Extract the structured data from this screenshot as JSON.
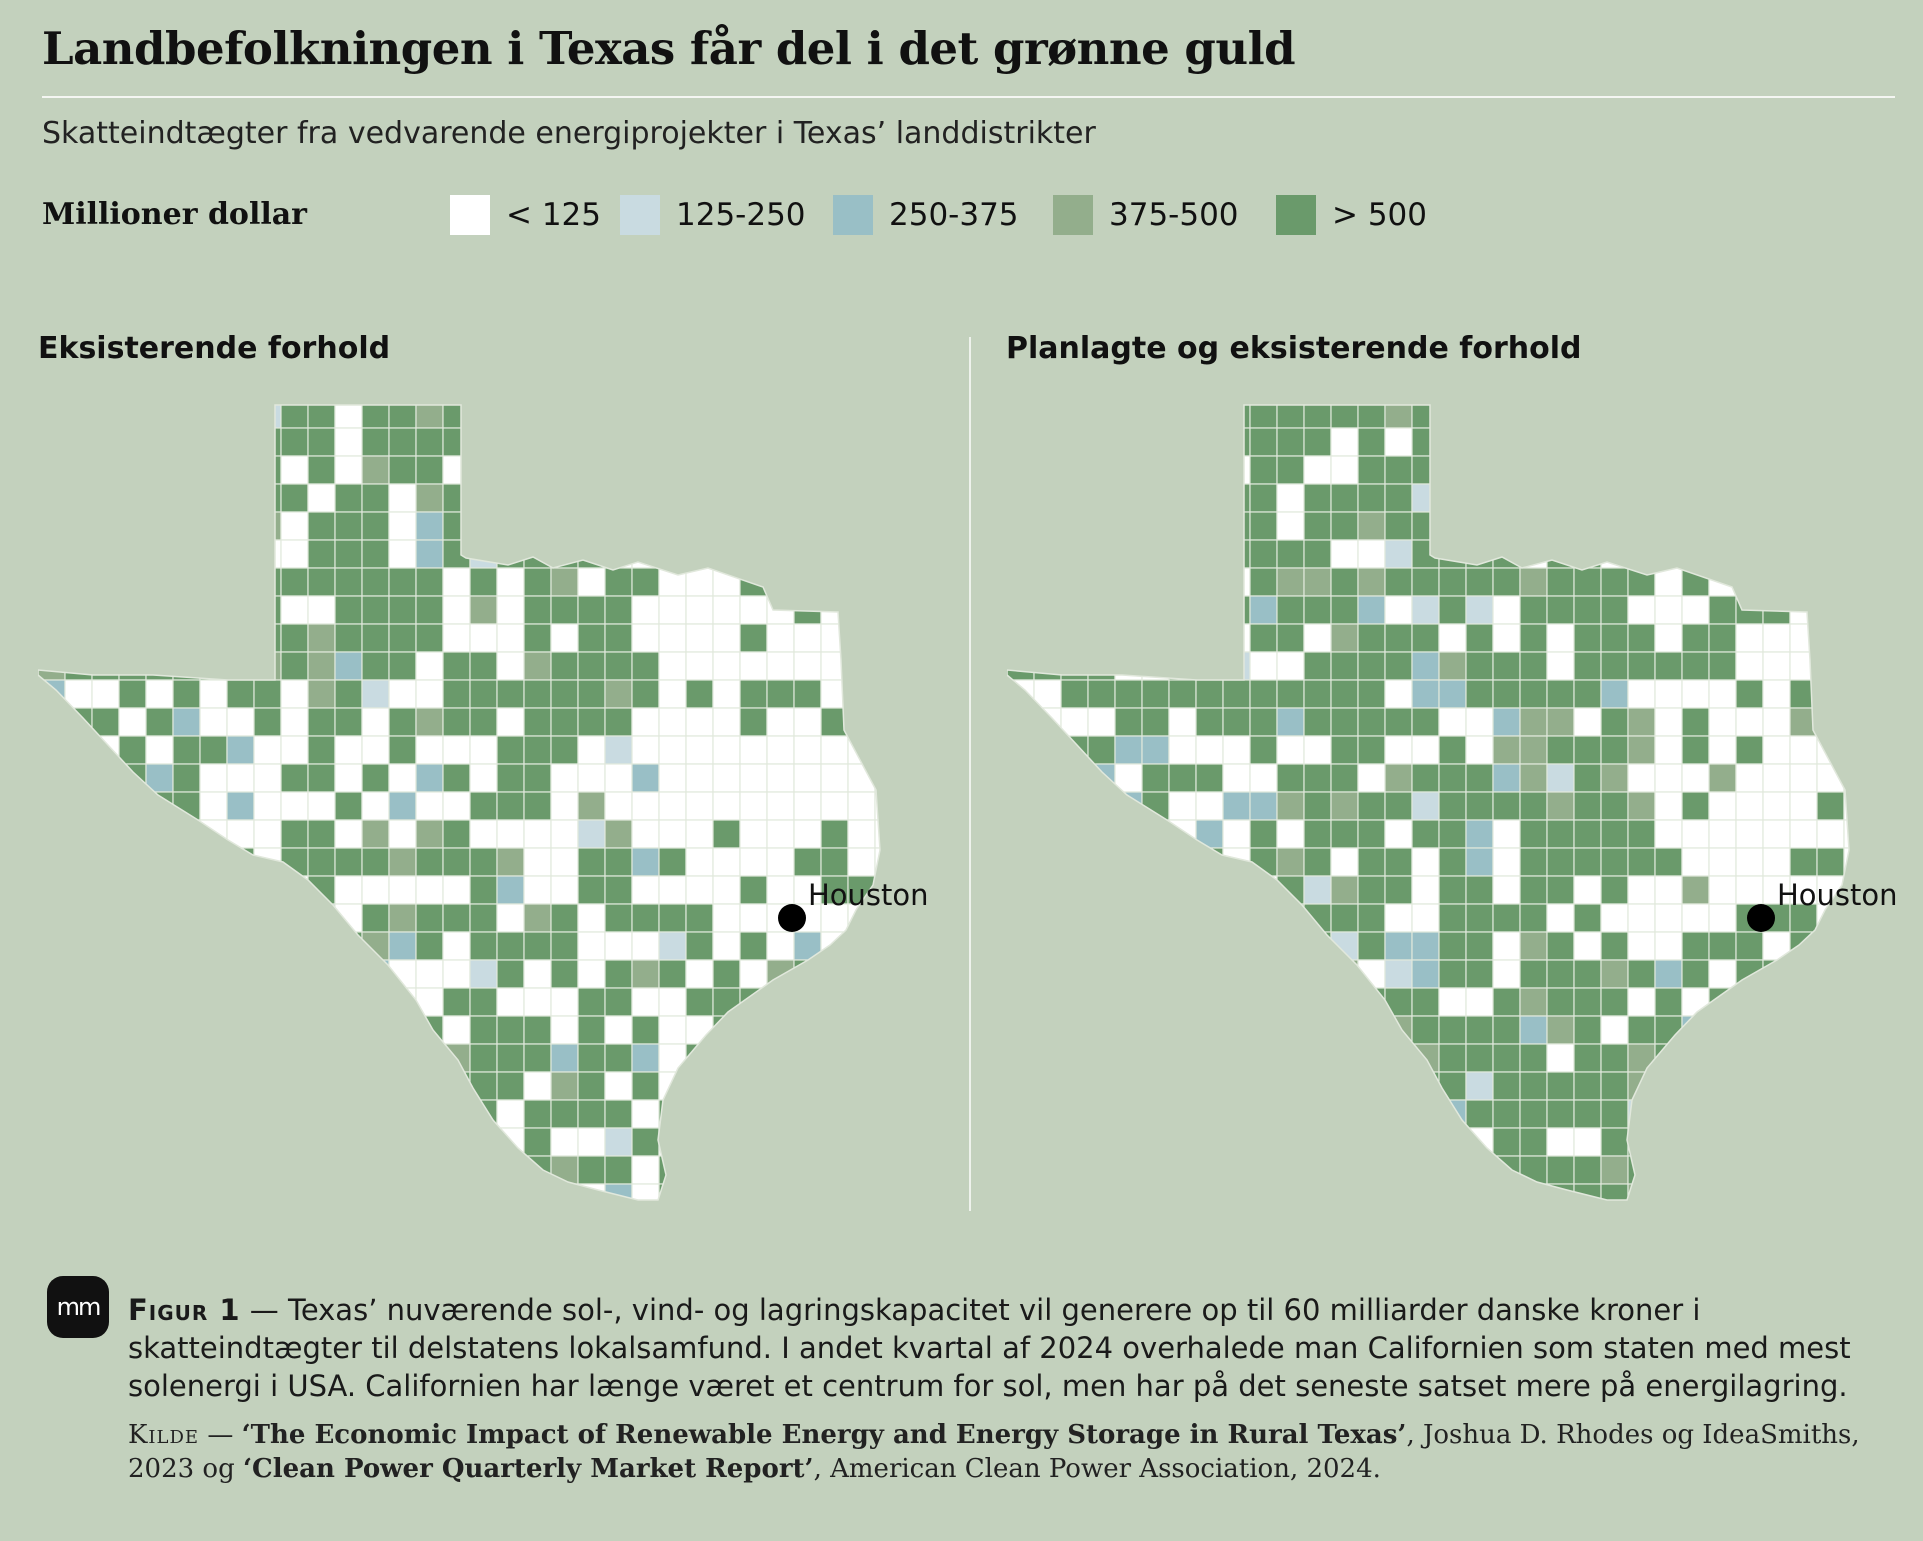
{
  "header": {
    "title": "Landbefolkningen i Texas får del i det grønne guld",
    "subtitle": "Skatteindtægter fra vedvarende energiprojekter i Texas’ landdistrikter"
  },
  "legend": {
    "title": "Millioner dollar",
    "items": [
      {
        "label": "< 125",
        "color": "#ffffff"
      },
      {
        "label": "125-250",
        "color": "#c9dbe1"
      },
      {
        "label": "250-375",
        "color": "#99bfc6"
      },
      {
        "label": "375-500",
        "color": "#93ae8c"
      },
      {
        "label": "> 500",
        "color": "#6a9a6b"
      }
    ]
  },
  "panels": [
    {
      "title": "Eksisterende forhold",
      "city": "Houston"
    },
    {
      "title": "Planlagte og eksisterende forhold",
      "city": "Houston"
    }
  ],
  "caption": {
    "figure_label": "Figur 1",
    "dash": " — ",
    "text": "Texas’ nuværende sol-, vind- og lagringskapacitet vil generere op til 60 milliarder danske kroner i skatteindtægter til delstatens lokalsamfund. I andet kvartal af 2024 overhalede man Californien som staten med mest solenergi i USA. Californien har længe været et centrum for sol, men har på det seneste satset mere på energilagring."
  },
  "source": {
    "label": "Kilde",
    "dash": " — ",
    "title1": "‘The Economic Impact of Renewable Energy and Energy Storage in Rural Texas’",
    "text1": ", Joshua D. Rhodes og IdeaSmiths, 2023 og ",
    "title2": "‘Clean Power Quarterly Market Report’",
    "text2": ", American Clean Power Association, 2024."
  },
  "logo": {
    "text": "mm"
  }
}
